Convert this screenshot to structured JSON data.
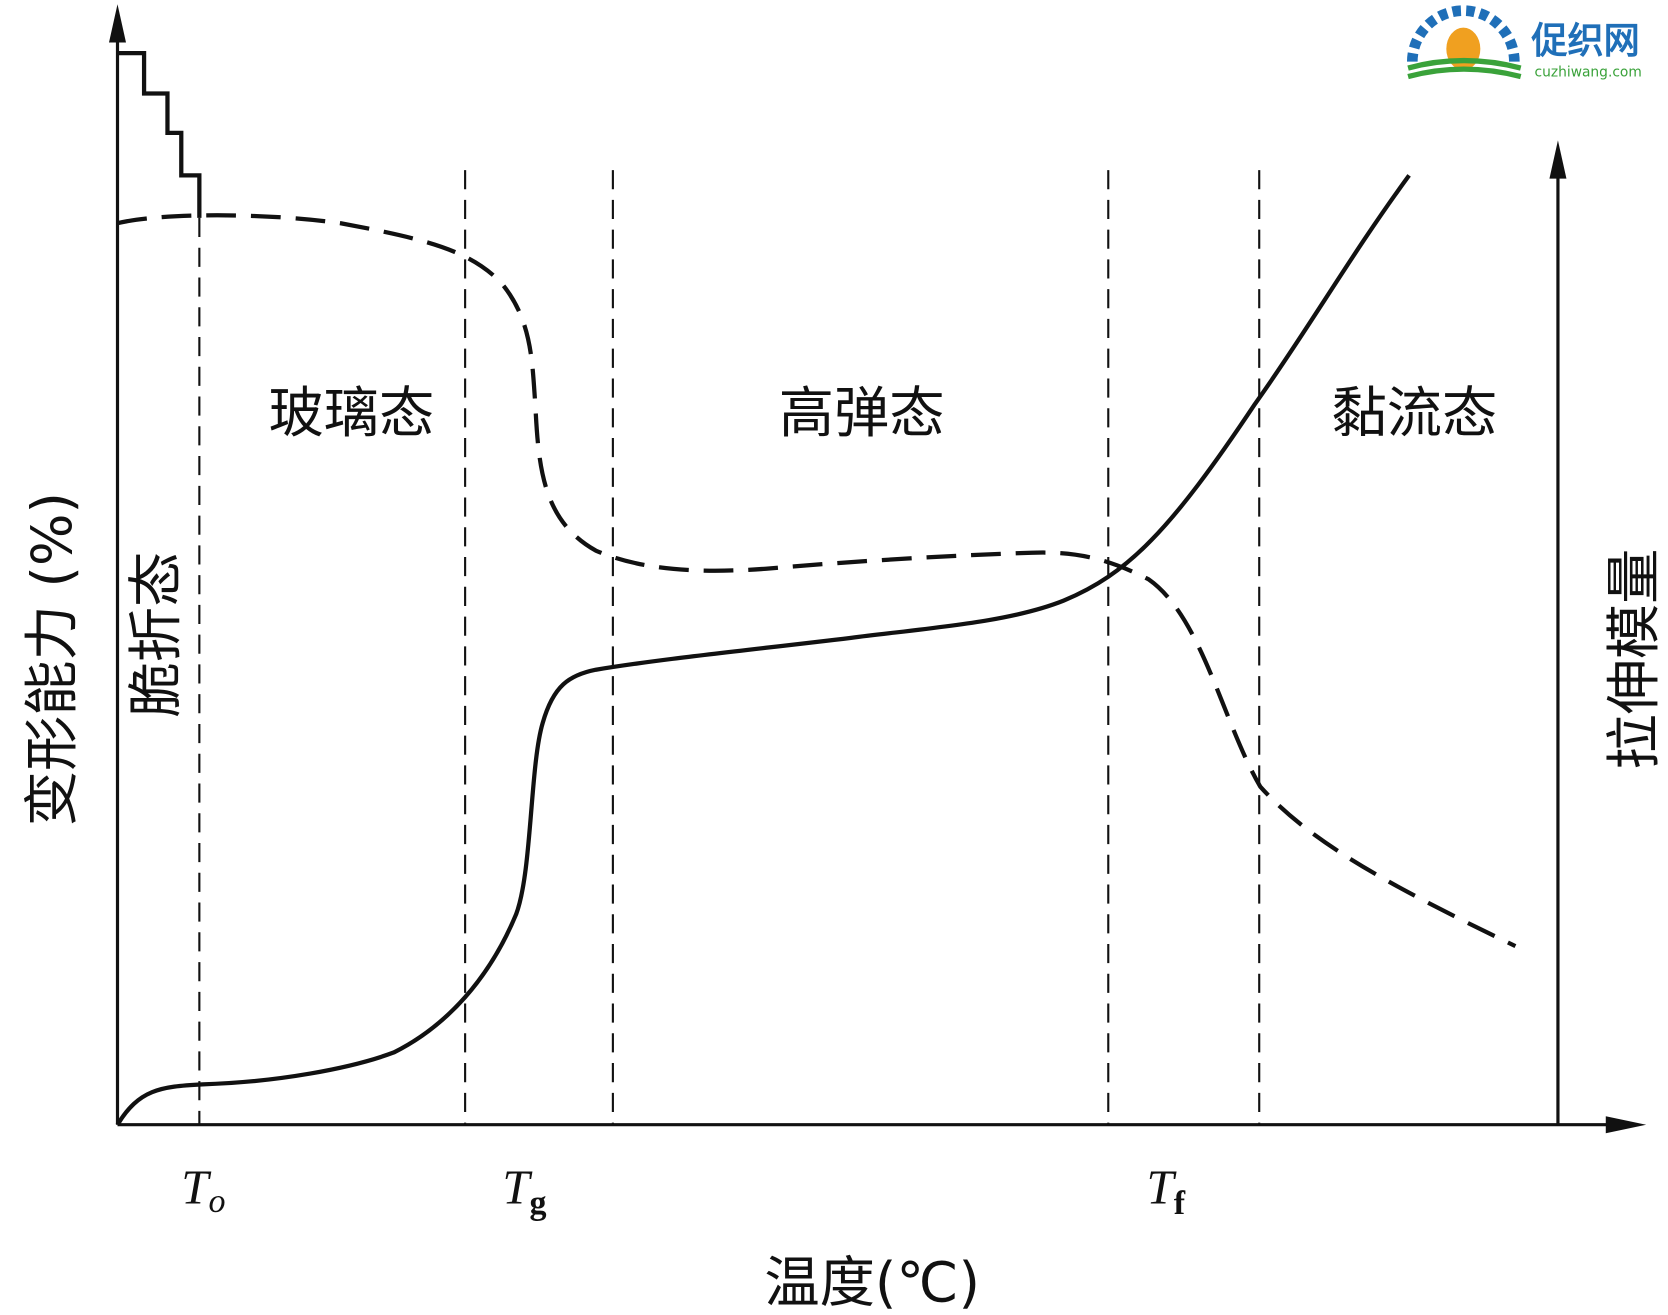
{
  "logo": {
    "name": "促织网",
    "url": "cuzhiwang.com"
  },
  "axes": {
    "y_left_label": "变形能力 (%)",
    "y_right_label": "拉伸模量",
    "x_label": "温度(℃)"
  },
  "regions": [
    "脆折态",
    "玻璃态",
    "高弹态",
    "黏流态"
  ],
  "temperatures": [
    {
      "symbol": "T",
      "subscript": "o"
    },
    {
      "symbol": "T",
      "subscript": "g"
    },
    {
      "symbol": "T",
      "subscript": "f"
    }
  ]
}
